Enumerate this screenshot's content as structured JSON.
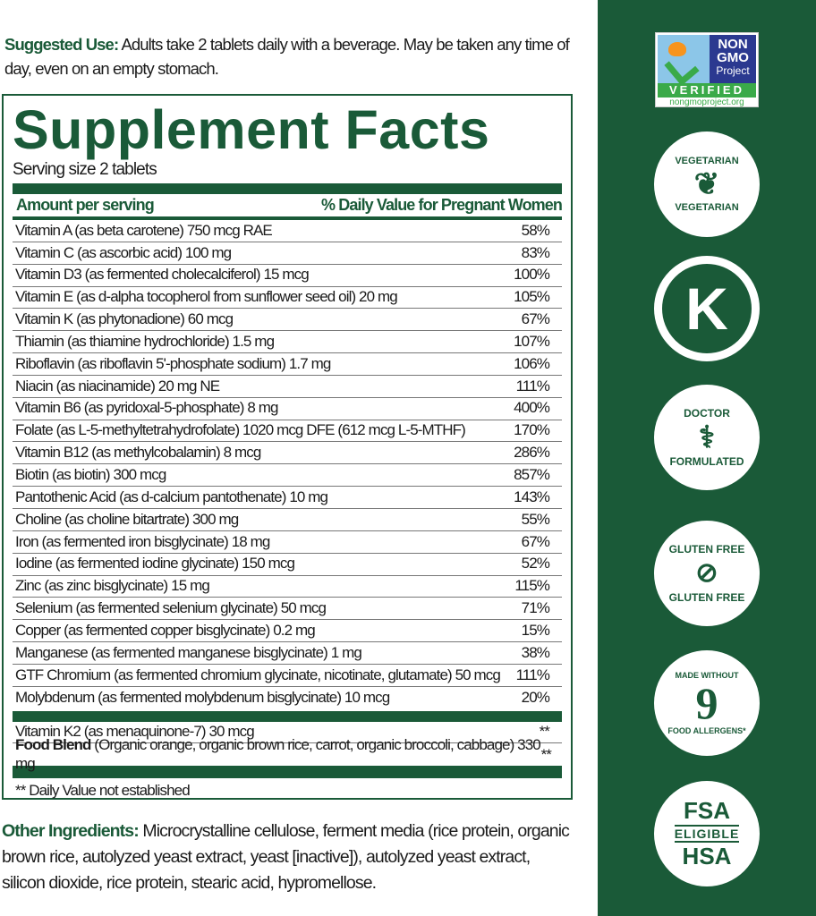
{
  "suggested_use": {
    "label": "Suggested Use:",
    "text": " Adults take 2 tablets daily with a beverage. May be taken any time of day, even on an empty stomach."
  },
  "facts": {
    "title": "Supplement Facts",
    "serving": "Serving size 2 tablets",
    "header_left": "Amount per serving",
    "header_right": "% Daily Value for Pregnant Women",
    "rows": [
      {
        "name": "Vitamin A (as beta carotene) 750 mcg RAE",
        "dv": "58%"
      },
      {
        "name": "Vitamin C (as ascorbic acid) 100 mg",
        "dv": "83%"
      },
      {
        "name": "Vitamin D3 (as fermented cholecalciferol) 15 mcg",
        "dv": "100%"
      },
      {
        "name": "Vitamin E (as d-alpha tocopherol from sunflower seed oil) 20 mg",
        "dv": "105%"
      },
      {
        "name": "Vitamin K (as phytonadione) 60 mcg",
        "dv": "67%"
      },
      {
        "name": "Thiamin (as thiamine hydrochloride) 1.5 mg",
        "dv": "107%"
      },
      {
        "name": "Riboflavin (as riboflavin 5'-phosphate sodium) 1.7 mg",
        "dv": "106%"
      },
      {
        "name": "Niacin (as niacinamide) 20 mg NE",
        "dv": "111%"
      },
      {
        "name": "Vitamin B6 (as pyridoxal-5-phosphate) 8 mg",
        "dv": "400%"
      },
      {
        "name": "Folate (as L-5-methyltetrahydrofolate) 1020 mcg DFE (612 mcg L-5-MTHF)",
        "dv": "170%"
      },
      {
        "name": "Vitamin B12 (as methylcobalamin) 8 mcg",
        "dv": "286%"
      },
      {
        "name": "Biotin (as biotin) 300 mcg",
        "dv": "857%"
      },
      {
        "name": "Pantothenic Acid (as d-calcium pantothenate) 10 mg",
        "dv": "143%"
      },
      {
        "name": "Choline (as choline bitartrate) 300 mg",
        "dv": "55%"
      },
      {
        "name": "Iron (as fermented iron bisglycinate) 18 mg",
        "dv": "67%"
      },
      {
        "name": "Iodine (as fermented iodine glycinate) 150 mcg",
        "dv": "52%"
      },
      {
        "name": "Zinc (as zinc bisglycinate) 15 mg",
        "dv": "115%"
      },
      {
        "name": "Selenium (as fermented selenium glycinate) 50 mcg",
        "dv": "71%"
      },
      {
        "name": "Copper (as fermented copper bisglycinate) 0.2 mg",
        "dv": "15%"
      },
      {
        "name": "Manganese (as fermented manganese bisglycinate) 1 mg",
        "dv": "38%"
      },
      {
        "name": "GTF Chromium (as fermented chromium glycinate, nicotinate, glutamate) 50 mcg",
        "dv": "111%"
      },
      {
        "name": "Molybdenum (as fermented molybdenum bisglycinate) 10 mcg",
        "dv": "20%"
      }
    ],
    "k2": {
      "name": "Vitamin K2 (as menaquinone-7) 30 mcg",
      "dv": "**"
    },
    "blend": {
      "label": "Food Blend",
      "text": " (Organic orange, organic  brown rice, carrot, organic broccoli, cabbage) 330 mg",
      "dv": "**"
    },
    "footnote": "** Daily Value not established"
  },
  "other": {
    "label": "Other Ingredients:",
    "text": " Microcrystalline cellulose, ferment media (rice protein, organic brown rice, autolyzed yeast extract, yeast  [inactive]), autolyzed yeast extract, silicon dioxide, rice protein, stearic acid, hypromellose."
  },
  "badges": {
    "gmo": {
      "line1": "NON",
      "line2": "GMO",
      "line3": "Project",
      "verified": "VERIFIED",
      "url": "nongmoproject.org"
    },
    "vegetarian": "VEGETARIAN",
    "kosher": "K",
    "doctor": {
      "top": "DOCTOR",
      "bottom": "FORMULATED"
    },
    "gluten": {
      "top": "GLUTEN FREE",
      "bottom": "GLUTEN FREE"
    },
    "allergens": {
      "top": "MADE WITHOUT",
      "number": "9",
      "bottom": "FOOD ALLERGENS*"
    },
    "fsa": {
      "top": "FSA",
      "mid": "ELIGIBLE",
      "bottom": "HSA"
    }
  },
  "colors": {
    "brand_green": "#1a5a38",
    "gmo_blue": "#2b3990",
    "gmo_green": "#3aaa49",
    "butterfly": "#f7941d"
  }
}
